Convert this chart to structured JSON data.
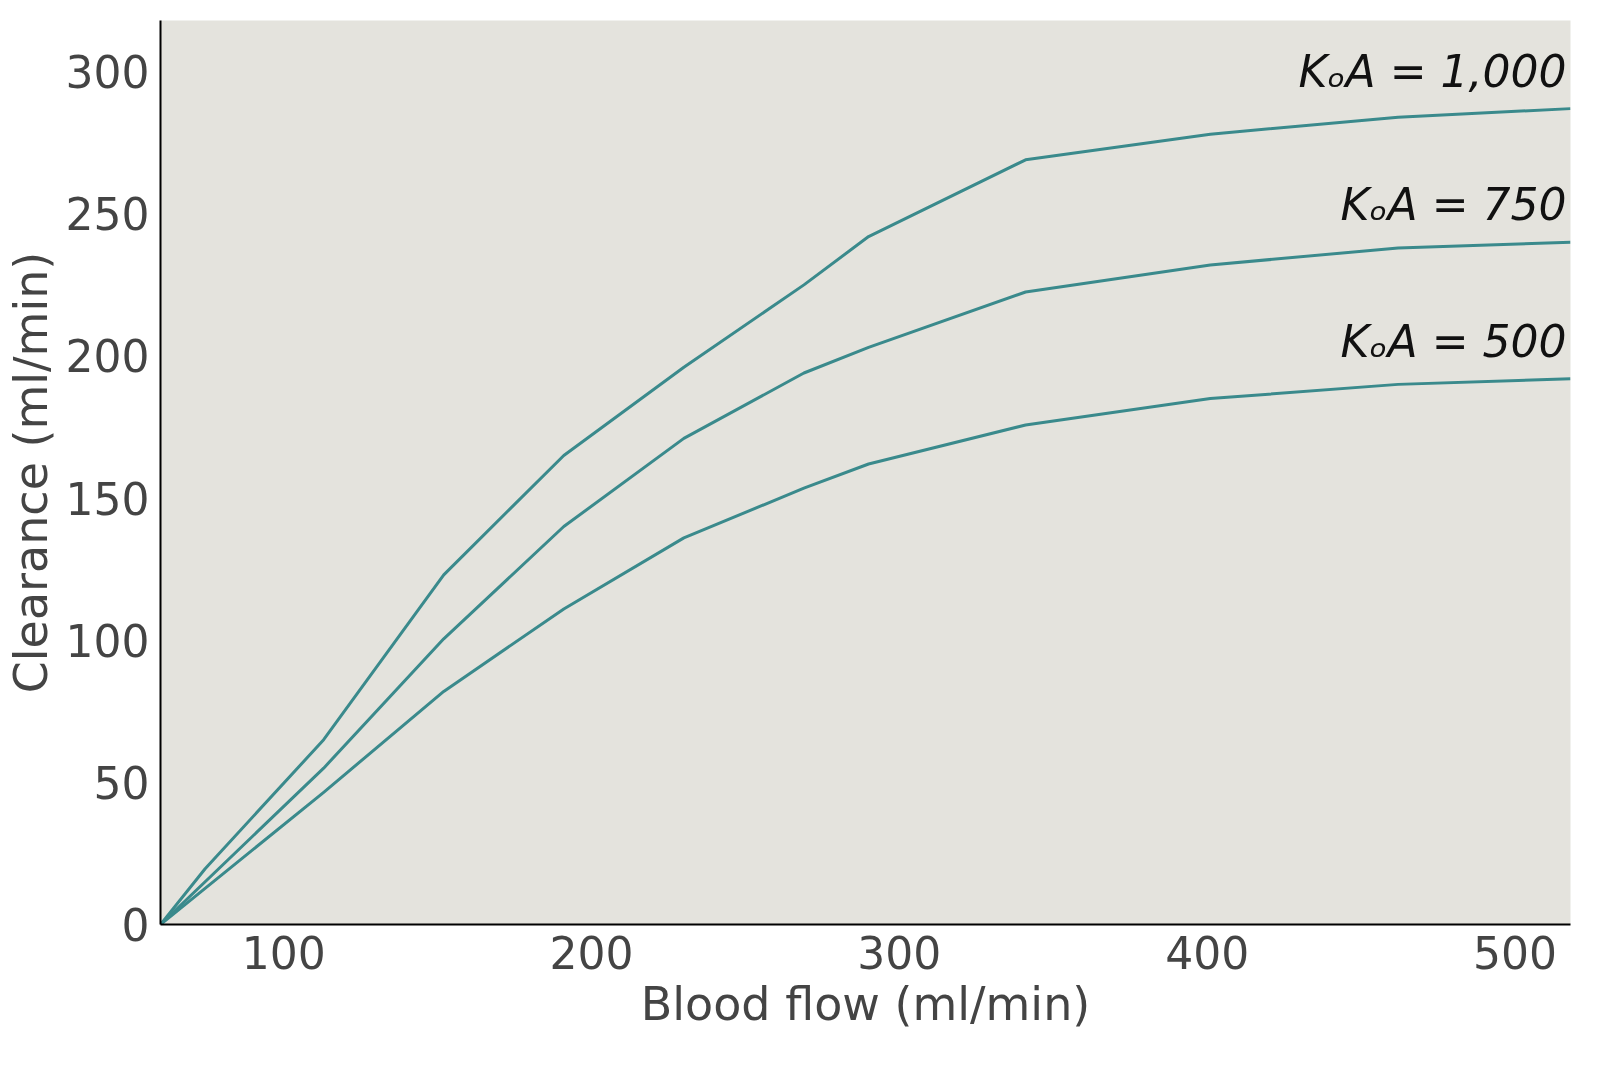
{
  "chart_data": {
    "type": "line",
    "xlabel": "Blood flow (ml/min)",
    "ylabel": "Clearance (ml/min)",
    "xlim": [
      60,
      518
    ],
    "ylim": [
      0,
      318
    ],
    "xticks": [
      100,
      200,
      300,
      400,
      500
    ],
    "yticks": [
      0,
      50,
      100,
      150,
      200,
      250,
      300
    ],
    "grid": false,
    "legend": false,
    "marker": "none",
    "line_style": "solid",
    "series": [
      {
        "name": "KₒA = 1,000",
        "color": "#3a8a8c",
        "x": [
          60,
          74.5,
          113,
          152,
          191,
          230,
          269,
          290,
          341,
          401,
          462,
          518
        ],
        "values": [
          0,
          19.6,
          65,
          123,
          165,
          196,
          225,
          242,
          269,
          278,
          284,
          287
        ]
      },
      {
        "name": "KₒA = 750",
        "color": "#3a8a8c",
        "x": [
          60,
          113,
          152,
          191,
          230,
          269,
          290,
          341,
          401,
          462,
          518
        ],
        "values": [
          0,
          55,
          100.5,
          140,
          171,
          194,
          203,
          222.5,
          232,
          238,
          240
        ]
      },
      {
        "name": "KₒA = 500",
        "color": "#3a8a8c",
        "x": [
          60,
          113,
          152,
          191,
          230,
          269,
          290,
          341,
          401,
          462,
          518
        ],
        "values": [
          0,
          46.5,
          82,
          111,
          136,
          153.5,
          162,
          175.7,
          185,
          190,
          192
        ]
      }
    ]
  }
}
